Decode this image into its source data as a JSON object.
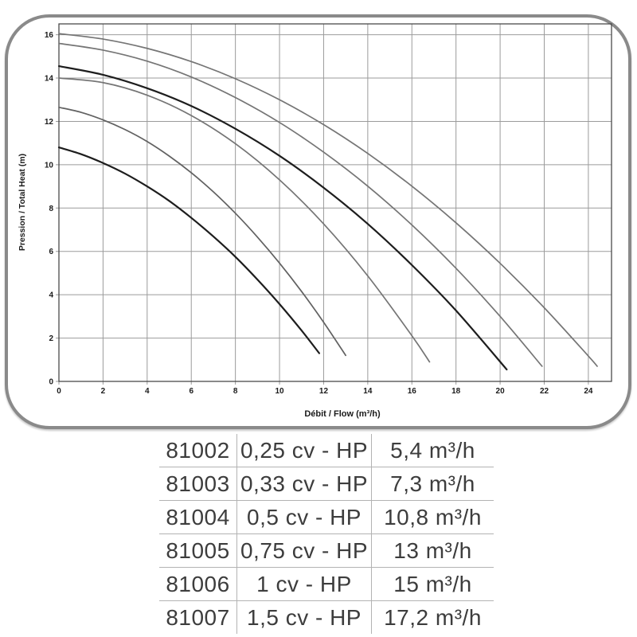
{
  "chart_data": {
    "type": "line",
    "title": "",
    "xlabel": "Débit / Flow (m³/h)",
    "ylabel": "Pression / Total Heat (m)",
    "xlim": [
      0,
      25.05
    ],
    "ylim": [
      0,
      16.5
    ],
    "xticks": [
      0,
      2,
      4,
      6,
      8,
      10,
      12,
      14,
      16,
      18,
      20,
      22,
      24
    ],
    "yticks": [
      0,
      2,
      4,
      6,
      8,
      10,
      12,
      14,
      16
    ],
    "grid": true,
    "legend_position": "none",
    "series": [
      {
        "name": "81002-0,25cv",
        "color": "#1d1d1d",
        "width": 2.2,
        "points": [
          [
            0,
            10.8
          ],
          [
            1,
            10.49
          ],
          [
            2,
            10.08
          ],
          [
            3,
            9.59
          ],
          [
            4,
            9.0
          ],
          [
            5,
            8.33
          ],
          [
            6,
            7.55
          ],
          [
            7,
            6.69
          ],
          [
            8,
            5.75
          ],
          [
            9,
            4.7
          ],
          [
            10,
            3.57
          ],
          [
            11,
            2.35
          ],
          [
            11.8,
            1.3
          ]
        ]
      },
      {
        "name": "81003-0,33cv",
        "color": "#616161",
        "width": 1.7,
        "points": [
          [
            0,
            12.65
          ],
          [
            1,
            12.42
          ],
          [
            2,
            12.07
          ],
          [
            3,
            11.62
          ],
          [
            4,
            11.07
          ],
          [
            5,
            10.4
          ],
          [
            6,
            9.63
          ],
          [
            7,
            8.75
          ],
          [
            8,
            7.76
          ],
          [
            9,
            6.66
          ],
          [
            10,
            5.46
          ],
          [
            11,
            4.15
          ],
          [
            12,
            2.73
          ],
          [
            13,
            1.2
          ]
        ]
      },
      {
        "name": "81004-0,5cv",
        "color": "#757575",
        "width": 1.7,
        "points": [
          [
            0,
            14.0
          ],
          [
            2,
            13.79
          ],
          [
            4,
            13.21
          ],
          [
            6,
            12.27
          ],
          [
            8,
            10.97
          ],
          [
            10,
            9.3
          ],
          [
            12,
            7.27
          ],
          [
            14,
            4.87
          ],
          [
            16,
            2.11
          ],
          [
            16.8,
            0.9
          ]
        ]
      },
      {
        "name": "81005-0,75cv",
        "color": "#1d1d1d",
        "width": 2.2,
        "points": [
          [
            0,
            14.55
          ],
          [
            2,
            14.15
          ],
          [
            4,
            13.53
          ],
          [
            6,
            12.71
          ],
          [
            8,
            11.66
          ],
          [
            10,
            10.41
          ],
          [
            12,
            8.94
          ],
          [
            14,
            7.27
          ],
          [
            16,
            5.37
          ],
          [
            18,
            3.27
          ],
          [
            20.3,
            0.55
          ]
        ]
      },
      {
        "name": "81006-1cv",
        "color": "#757575",
        "width": 1.7,
        "points": [
          [
            0,
            15.6
          ],
          [
            2,
            15.29
          ],
          [
            4,
            14.78
          ],
          [
            6,
            14.05
          ],
          [
            8,
            13.1
          ],
          [
            10,
            11.95
          ],
          [
            12,
            10.58
          ],
          [
            14,
            9.01
          ],
          [
            16,
            7.22
          ],
          [
            18,
            5.22
          ],
          [
            20,
            3.0
          ],
          [
            21.9,
            0.7
          ]
        ]
      },
      {
        "name": "81007-1,5cv",
        "color": "#757575",
        "width": 1.7,
        "points": [
          [
            0,
            16.05
          ],
          [
            2,
            15.8
          ],
          [
            4,
            15.37
          ],
          [
            6,
            14.76
          ],
          [
            8,
            13.97
          ],
          [
            10,
            13.0
          ],
          [
            12,
            11.85
          ],
          [
            14,
            10.52
          ],
          [
            16,
            9.01
          ],
          [
            18,
            7.32
          ],
          [
            20,
            5.45
          ],
          [
            22,
            3.4
          ],
          [
            24,
            1.17
          ],
          [
            24.4,
            0.7
          ]
        ]
      }
    ]
  },
  "table": {
    "rows": [
      {
        "code": "81002",
        "power": "0,25 cv - HP",
        "flow": "5,4 m³/h"
      },
      {
        "code": "81003",
        "power": "0,33 cv - HP",
        "flow": "7,3 m³/h"
      },
      {
        "code": "81004",
        "power": "0,5 cv - HP",
        "flow": "10,8 m³/h"
      },
      {
        "code": "81005",
        "power": "0,75 cv - HP",
        "flow": "13 m³/h"
      },
      {
        "code": "81006",
        "power": "1 cv - HP",
        "flow": "15 m³/h"
      },
      {
        "code": "81007",
        "power": "1,5 cv - HP",
        "flow": "17,2 m³/h"
      }
    ]
  },
  "palette": {
    "grid": "#9b9b9b",
    "frame": "#4a4a4a",
    "card_border": "#8a8a8a",
    "tick_text": "#1a1a1a",
    "table_text": "#3d3d3d",
    "table_divider": "#b3b3b3",
    "curve_dark": "#1d1d1d",
    "curve_gray": "#757575"
  }
}
